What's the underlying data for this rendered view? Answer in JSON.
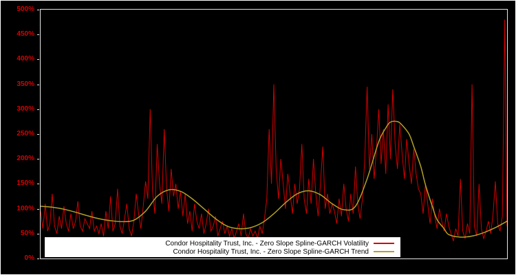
{
  "window": {
    "background": "#000000",
    "frame_border_color": "#ffffff",
    "plot_border_color": "#e8e8e8"
  },
  "chart_data": {
    "type": "line",
    "title": "",
    "xlabel": "",
    "ylabel": "",
    "x_axis_tick_labels_visible": false,
    "ylim": [
      0,
      500
    ],
    "y_unit": "%",
    "grid": false,
    "plot_background": "#000000",
    "axis_label_color": "#dd0000",
    "ytick_values": [
      0,
      50,
      100,
      150,
      200,
      250,
      300,
      350,
      400,
      450,
      500
    ],
    "ytick_labels": [
      "0%",
      "50%",
      "100%",
      "150%",
      "200%",
      "250%",
      "300%",
      "350%",
      "400%",
      "450%",
      "500%"
    ],
    "legend": {
      "position": "bottom-left-inside",
      "background": "#ffffff",
      "text_color": "#000000"
    },
    "series": [
      {
        "name": "Condor Hospitality Trust, Inc. - Zero Slope Spline-GARCH Volatility",
        "color": "#d40000",
        "style": "spiky-line",
        "values": [
          95,
          60,
          110,
          55,
          70,
          130,
          65,
          50,
          85,
          60,
          105,
          70,
          55,
          90,
          60,
          75,
          115,
          65,
          55,
          80,
          70,
          60,
          95,
          55,
          65,
          50,
          70,
          45,
          95,
          60,
          125,
          55,
          70,
          140,
          65,
          50,
          80,
          110,
          60,
          45,
          75,
          130,
          90,
          60,
          105,
          155,
          120,
          300,
          135,
          90,
          230,
          150,
          110,
          260,
          140,
          95,
          180,
          125,
          150,
          100,
          135,
          85,
          130,
          70,
          95,
          55,
          110,
          75,
          60,
          90,
          50,
          70,
          100,
          55,
          65,
          85,
          45,
          60,
          75,
          50,
          65,
          45,
          60,
          40,
          55,
          70,
          45,
          90,
          50,
          40,
          60,
          45,
          55,
          40,
          65,
          50,
          80,
          120,
          260,
          150,
          350,
          180,
          120,
          200,
          150,
          100,
          170,
          130,
          90,
          150,
          110,
          140,
          230,
          120,
          90,
          160,
          110,
          200,
          130,
          85,
          150,
          225,
          100,
          130,
          90,
          110,
          95,
          70,
          120,
          85,
          150,
          100,
          75,
          130,
          90,
          185,
          110,
          80,
          120,
          200,
          345,
          180,
          250,
          160,
          220,
          300,
          190,
          260,
          170,
          310,
          200,
          340,
          230,
          180,
          270,
          210,
          160,
          240,
          190,
          150,
          220,
          170,
          140,
          130,
          90,
          150,
          110,
          70,
          120,
          85,
          60,
          100,
          75,
          55,
          90,
          65,
          50,
          35,
          60,
          45,
          160,
          55,
          40,
          70,
          50,
          350,
          65,
          45,
          150,
          60,
          40,
          55,
          75,
          50,
          90,
          155,
          70,
          55,
          85,
          480,
          65
        ]
      },
      {
        "name": "Condor Hospitality Trust, Inc. - Zero Slope Spline-GARCH Trend",
        "color": "#b3a125",
        "style": "smooth-spline",
        "x": [
          0,
          5,
          10,
          15,
          20,
          25,
          30,
          35,
          40,
          45,
          50,
          55,
          60,
          65,
          70,
          75,
          80,
          85,
          90,
          95,
          100,
          105,
          110,
          115,
          120,
          125,
          130,
          135,
          140,
          145,
          148,
          150,
          153,
          155,
          158,
          160,
          163,
          165,
          168,
          170,
          173,
          175,
          180,
          185,
          190,
          195,
          200
        ],
        "values": [
          105,
          103,
          99,
          93,
          86,
          80,
          76,
          74,
          77,
          95,
          125,
          138,
          135,
          120,
          100,
          80,
          65,
          60,
          62,
          72,
          90,
          112,
          130,
          136,
          128,
          110,
          98,
          105,
          160,
          235,
          262,
          274,
          275,
          268,
          250,
          225,
          185,
          148,
          104,
          78,
          60,
          48,
          43,
          45,
          52,
          62,
          75
        ]
      }
    ]
  }
}
